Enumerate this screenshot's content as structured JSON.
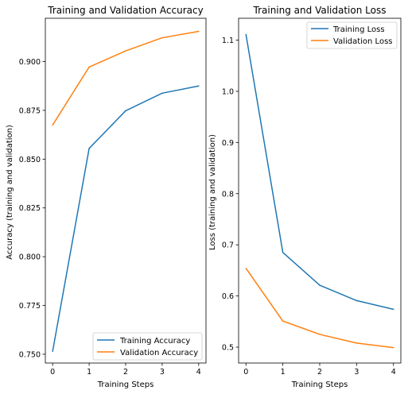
{
  "chart_data": [
    {
      "type": "line",
      "title": "Training and Validation Accuracy",
      "xlabel": "Training Steps",
      "ylabel": "Accuracy (training and validation)",
      "x": [
        0,
        1,
        2,
        3,
        4
      ],
      "xticks": [
        "0",
        "1",
        "2",
        "3",
        "4"
      ],
      "xlim": [
        -0.2,
        4.2
      ],
      "ylim": [
        0.7455,
        0.9222
      ],
      "yticks": [
        0.75,
        0.775,
        0.8,
        0.825,
        0.85,
        0.875,
        0.9
      ],
      "ytick_labels": [
        "0.750",
        "0.775",
        "0.800",
        "0.825",
        "0.850",
        "0.875",
        "0.900"
      ],
      "grid": false,
      "legend_position": "bottom-right",
      "series": [
        {
          "name": "Training Accuracy",
          "color": "#1f77b4",
          "values": [
            0.7515,
            0.8555,
            0.8748,
            0.8838,
            0.8875
          ]
        },
        {
          "name": "Validation Accuracy",
          "color": "#ff7f0e",
          "values": [
            0.8675,
            0.8972,
            0.9055,
            0.9122,
            0.9155
          ]
        }
      ]
    },
    {
      "type": "line",
      "title": "Training and Validation Loss",
      "xlabel": "Training Steps",
      "ylabel": "Loss (training and validation)",
      "x": [
        0,
        1,
        2,
        3,
        4
      ],
      "xticks": [
        "0",
        "1",
        "2",
        "3",
        "4"
      ],
      "xlim": [
        -0.2,
        4.2
      ],
      "ylim": [
        0.469,
        1.1427
      ],
      "yticks": [
        0.5,
        0.6,
        0.7,
        0.8,
        0.9,
        1.0,
        1.1
      ],
      "ytick_labels": [
        "0.5",
        "0.6",
        "0.7",
        "0.8",
        "0.9",
        "1.0",
        "1.1"
      ],
      "grid": false,
      "legend_position": "top-right",
      "series": [
        {
          "name": "Training Loss",
          "color": "#1f77b4",
          "values": [
            1.111,
            0.685,
            0.621,
            0.591,
            0.574
          ]
        },
        {
          "name": "Validation Loss",
          "color": "#ff7f0e",
          "values": [
            0.654,
            0.551,
            0.525,
            0.508,
            0.499
          ]
        }
      ]
    }
  ]
}
